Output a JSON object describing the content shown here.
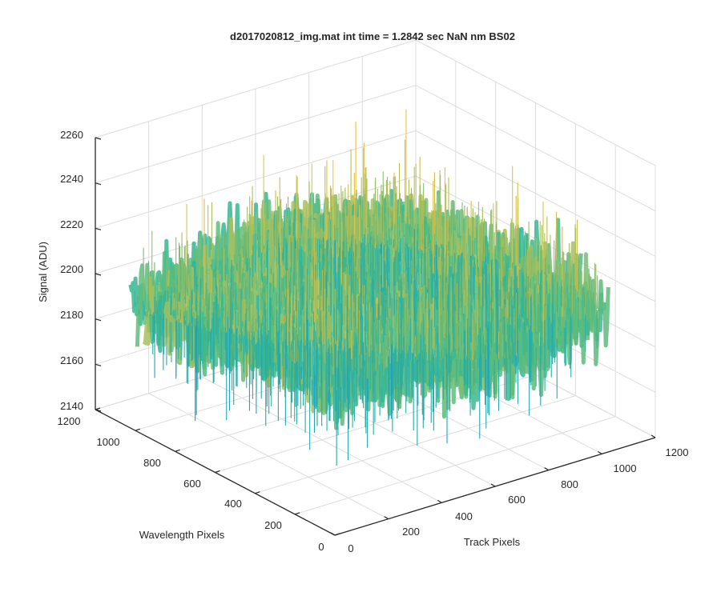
{
  "chart_data": {
    "type": "surface",
    "title": "d2017020812_img.mat int time = 1.2842 sec  NaN nm BS02",
    "xlabel": "Track Pixels",
    "ylabel": "Wavelength Pixels",
    "zlabel": "Signal (ADU)",
    "xlim": [
      0,
      1200
    ],
    "ylim": [
      0,
      1200
    ],
    "zlim": [
      2140,
      2260
    ],
    "x_ticks": [
      "0",
      "200",
      "400",
      "600",
      "800",
      "1000",
      "1200"
    ],
    "y_ticks": [
      "0",
      "200",
      "400",
      "600",
      "800",
      "1000",
      "1200"
    ],
    "z_ticks": [
      "2140",
      "2160",
      "2180",
      "2200",
      "2220",
      "2240",
      "2260"
    ],
    "grid": true,
    "colormap": "parula",
    "surface": {
      "mean_level": 2200,
      "noise_range": [
        2150,
        2250
      ],
      "x_extent": [
        0,
        1024
      ],
      "y_extent": [
        0,
        1024
      ]
    },
    "colors": {
      "low": "#1aa0c0",
      "mid": "#3cba8c",
      "high": "#f5c23c",
      "axis": "#262626",
      "grid": "#dcdcdc"
    }
  }
}
